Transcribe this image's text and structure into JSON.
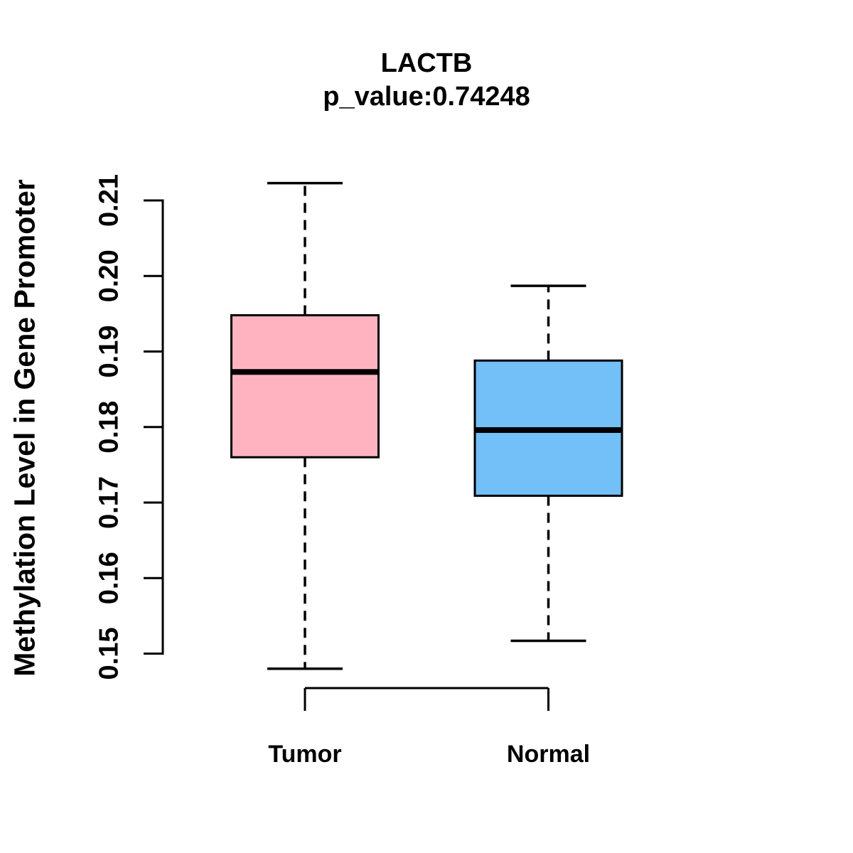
{
  "figure": {
    "background_color": "#ffffff",
    "text_color": "#000000"
  },
  "chart_data": {
    "type": "boxplot",
    "title": "LACTB",
    "subtitle": "p_value:0.74248",
    "ylabel": "Methylation Level in Gene Promoter",
    "xlabel": "",
    "categories": [
      "Tumor",
      "Normal"
    ],
    "yticks": [
      0.15,
      0.16,
      0.17,
      0.18,
      0.19,
      0.2,
      0.21
    ],
    "ytick_labels": [
      "0.15",
      "0.16",
      "0.17",
      "0.18",
      "0.19",
      "0.20",
      "0.21"
    ],
    "ylim": [
      0.148,
      0.213
    ],
    "grid": false,
    "legend": "none",
    "stroke_color": "#000000",
    "series": [
      {
        "name": "Tumor",
        "fill_color": "#FFB3C1",
        "whisker_low": 0.148,
        "q1": 0.176,
        "median": 0.1873,
        "q3": 0.1948,
        "whisker_high": 0.2123
      },
      {
        "name": "Normal",
        "fill_color": "#73BFF7",
        "whisker_low": 0.1517,
        "q1": 0.1709,
        "median": 0.1796,
        "q3": 0.1888,
        "whisker_high": 0.1987
      }
    ]
  }
}
